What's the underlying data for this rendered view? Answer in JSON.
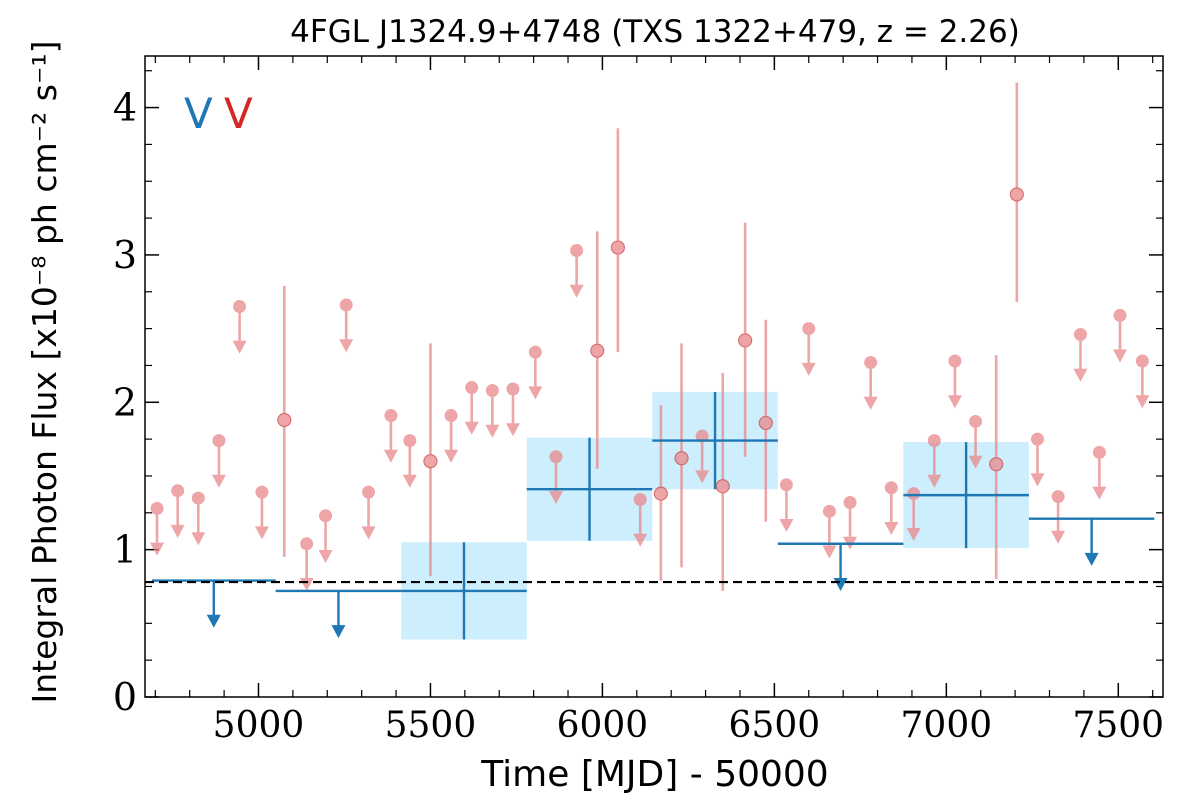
{
  "chart_data": {
    "type": "scatter",
    "title": "4FGL J1324.9+4748 (TXS 1322+479, z = 2.26)",
    "xlabel": "Time [MJD] - 50000",
    "ylabel": "Integral Photon Flux [x10⁻⁸ ph cm⁻² s⁻¹]",
    "xlim": [
      4670,
      7630
    ],
    "ylim": [
      0,
      4.35
    ],
    "x_ticks": [
      5000,
      5500,
      6000,
      6500,
      7000,
      7500
    ],
    "y_ticks": [
      0,
      1,
      2,
      3,
      4
    ],
    "legend": {
      "placement": "top-left",
      "entries": [
        "V",
        "V"
      ],
      "colors": [
        "#1f77b4",
        "#d62728"
      ]
    },
    "colors": {
      "long_bins": "#1f77b4",
      "short_bins": "#e8888a",
      "band": "#cdeefc",
      "baseline": "#000000"
    },
    "baseline_flux": 0.78,
    "series": [
      {
        "kind": "long_bins",
        "bins": [
          {
            "x_start": 4690,
            "x_end": 5050,
            "y": 0.79,
            "upper_limit": true
          },
          {
            "x_start": 5050,
            "x_end": 5415,
            "y": 0.72,
            "upper_limit": true
          },
          {
            "x_start": 5415,
            "x_end": 5780,
            "y": 0.72,
            "yerr": 0.33,
            "upper_limit": false
          },
          {
            "x_start": 5780,
            "x_end": 6145,
            "y": 1.41,
            "yerr": 0.35,
            "upper_limit": false
          },
          {
            "x_start": 6145,
            "x_end": 6510,
            "y": 1.74,
            "yerr": 0.33,
            "upper_limit": false
          },
          {
            "x_start": 6510,
            "x_end": 6875,
            "y": 1.04,
            "upper_limit": true
          },
          {
            "x_start": 6875,
            "x_end": 7240,
            "y": 1.37,
            "yerr": 0.36,
            "upper_limit": false
          },
          {
            "x_start": 7240,
            "x_end": 7605,
            "y": 1.21,
            "upper_limit": true
          }
        ]
      },
      {
        "kind": "short_bins",
        "points": [
          {
            "x": 4705,
            "y": 1.28,
            "upper_limit": true
          },
          {
            "x": 4765,
            "y": 1.4,
            "upper_limit": true
          },
          {
            "x": 4825,
            "y": 1.35,
            "upper_limit": true
          },
          {
            "x": 4885,
            "y": 1.74,
            "upper_limit": true
          },
          {
            "x": 4945,
            "y": 2.65,
            "upper_limit": true
          },
          {
            "x": 5010,
            "y": 1.39,
            "upper_limit": true
          },
          {
            "x": 5075,
            "y": 1.88,
            "y_low": 0.95,
            "y_high": 2.79,
            "upper_limit": false
          },
          {
            "x": 5140,
            "y": 1.04,
            "upper_limit": true
          },
          {
            "x": 5195,
            "y": 1.23,
            "upper_limit": true
          },
          {
            "x": 5255,
            "y": 2.66,
            "upper_limit": true
          },
          {
            "x": 5320,
            "y": 1.39,
            "upper_limit": true
          },
          {
            "x": 5385,
            "y": 1.91,
            "upper_limit": true
          },
          {
            "x": 5440,
            "y": 1.74,
            "upper_limit": true
          },
          {
            "x": 5500,
            "y": 1.6,
            "y_low": 0.82,
            "y_high": 2.4,
            "upper_limit": false
          },
          {
            "x": 5560,
            "y": 1.91,
            "upper_limit": true
          },
          {
            "x": 5620,
            "y": 2.1,
            "upper_limit": true
          },
          {
            "x": 5680,
            "y": 2.08,
            "upper_limit": true
          },
          {
            "x": 5740,
            "y": 2.09,
            "upper_limit": true
          },
          {
            "x": 5805,
            "y": 2.34,
            "upper_limit": true
          },
          {
            "x": 5865,
            "y": 1.63,
            "upper_limit": true
          },
          {
            "x": 5925,
            "y": 3.03,
            "upper_limit": true
          },
          {
            "x": 5985,
            "y": 2.35,
            "y_low": 1.55,
            "y_high": 3.16,
            "upper_limit": false
          },
          {
            "x": 6045,
            "y": 3.05,
            "y_low": 2.34,
            "y_high": 3.86,
            "upper_limit": false
          },
          {
            "x": 6110,
            "y": 1.34,
            "upper_limit": true
          },
          {
            "x": 6170,
            "y": 1.38,
            "y_low": 0.79,
            "y_high": 1.98,
            "upper_limit": false
          },
          {
            "x": 6230,
            "y": 1.62,
            "y_low": 0.88,
            "y_high": 2.4,
            "upper_limit": false
          },
          {
            "x": 6290,
            "y": 1.77,
            "upper_limit": true
          },
          {
            "x": 6350,
            "y": 1.43,
            "y_low": 0.72,
            "y_high": 2.2,
            "upper_limit": false
          },
          {
            "x": 6415,
            "y": 2.42,
            "y_low": 1.63,
            "y_high": 3.22,
            "upper_limit": false
          },
          {
            "x": 6475,
            "y": 1.86,
            "y_low": 1.19,
            "y_high": 2.56,
            "upper_limit": false
          },
          {
            "x": 6535,
            "y": 1.44,
            "upper_limit": true
          },
          {
            "x": 6600,
            "y": 2.5,
            "upper_limit": true
          },
          {
            "x": 6660,
            "y": 1.26,
            "upper_limit": true
          },
          {
            "x": 6720,
            "y": 1.32,
            "upper_limit": true
          },
          {
            "x": 6780,
            "y": 2.27,
            "upper_limit": true
          },
          {
            "x": 6840,
            "y": 1.42,
            "upper_limit": true
          },
          {
            "x": 6905,
            "y": 1.38,
            "upper_limit": true
          },
          {
            "x": 6965,
            "y": 1.74,
            "upper_limit": true
          },
          {
            "x": 7025,
            "y": 2.28,
            "upper_limit": true
          },
          {
            "x": 7085,
            "y": 1.87,
            "upper_limit": true
          },
          {
            "x": 7145,
            "y": 1.58,
            "y_low": 0.8,
            "y_high": 2.32,
            "upper_limit": false
          },
          {
            "x": 7205,
            "y": 3.41,
            "y_low": 2.68,
            "y_high": 4.17,
            "upper_limit": false
          },
          {
            "x": 7265,
            "y": 1.75,
            "upper_limit": true
          },
          {
            "x": 7325,
            "y": 1.36,
            "upper_limit": true
          },
          {
            "x": 7390,
            "y": 2.46,
            "upper_limit": true
          },
          {
            "x": 7445,
            "y": 1.66,
            "upper_limit": true
          },
          {
            "x": 7505,
            "y": 2.59,
            "upper_limit": true
          },
          {
            "x": 7570,
            "y": 2.28,
            "upper_limit": true
          }
        ]
      }
    ]
  }
}
